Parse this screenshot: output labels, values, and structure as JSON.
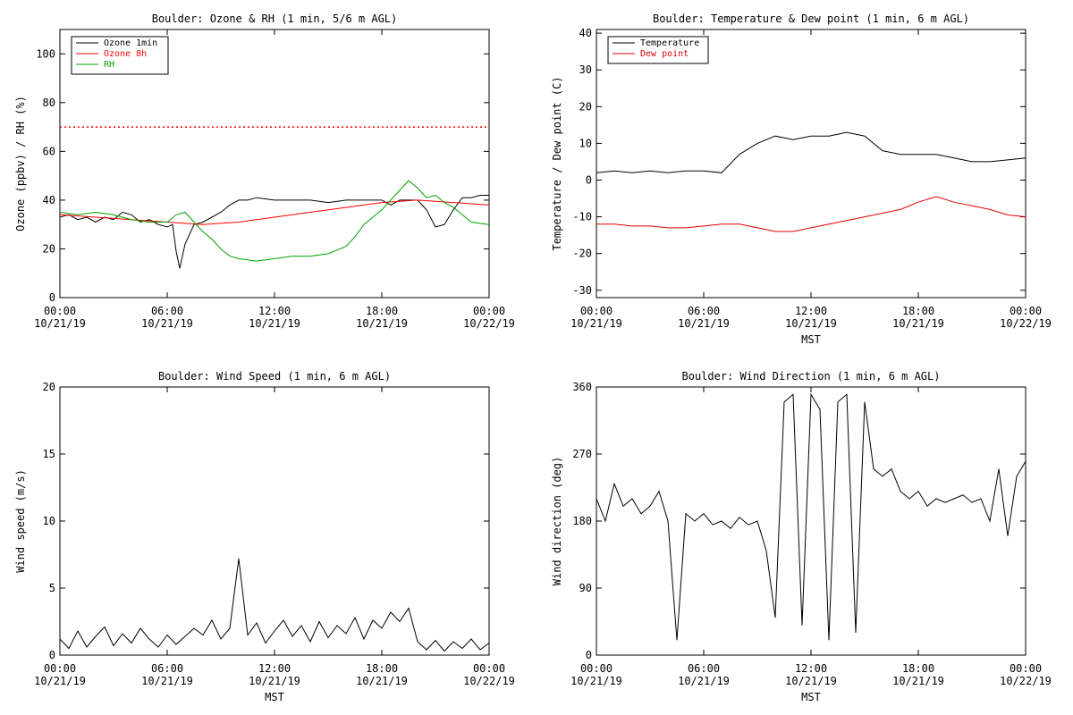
{
  "chart_data": [
    {
      "type": "line",
      "title": "Boulder: Ozone & RH (1 min, 5/6 m AGL)",
      "xlabel": "",
      "ylabel": "Ozone (ppbv) / RH (%)",
      "xlim": [
        0,
        24
      ],
      "ylim": [
        0,
        110
      ],
      "x_tick_values": [
        0,
        6,
        12,
        18,
        24
      ],
      "x_tick_labels": [
        [
          "00:00",
          "10/21/19"
        ],
        [
          "06:00",
          "10/21/19"
        ],
        [
          "12:00",
          "10/21/19"
        ],
        [
          "18:00",
          "10/21/19"
        ],
        [
          "00:00",
          "10/22/19"
        ]
      ],
      "y_ticks": [
        0,
        20,
        40,
        60,
        80,
        100
      ],
      "grid": false,
      "legend_position": "top-left",
      "reference_line": {
        "y": 70,
        "style": "dotted",
        "color": "#ff0000"
      },
      "series": [
        {
          "name": "Ozone 1min",
          "color": "#000000",
          "x": [
            0,
            0.5,
            1,
            1.5,
            2,
            2.5,
            3,
            3.5,
            4,
            4.5,
            5,
            5.5,
            6,
            6.3,
            6.5,
            6.7,
            7,
            7.5,
            8,
            8.5,
            9,
            9.5,
            10,
            10.5,
            11,
            12,
            13,
            14,
            15,
            16,
            17,
            18,
            18.5,
            19,
            19.5,
            20,
            20.5,
            21,
            21.5,
            22,
            22.5,
            23,
            23.5,
            24
          ],
          "y": [
            33,
            34,
            32,
            33,
            31,
            33,
            32,
            35,
            34,
            31,
            32,
            30,
            29,
            30,
            19,
            12,
            22,
            30,
            31,
            33,
            35,
            38,
            40,
            40,
            41,
            40,
            40,
            40,
            39,
            40,
            40,
            40,
            38,
            40,
            40,
            40,
            36,
            29,
            30,
            36,
            41,
            41,
            42,
            42
          ]
        },
        {
          "name": "Ozone 8h",
          "color": "#ff0000",
          "x": [
            0,
            2,
            4,
            6,
            8,
            10,
            12,
            14,
            16,
            18,
            20,
            22,
            24
          ],
          "y": [
            34,
            33,
            32,
            31,
            30,
            31,
            33,
            35,
            37,
            39,
            40,
            39,
            38
          ]
        },
        {
          "name": "RH",
          "color": "#00a000",
          "x": [
            0,
            1,
            2,
            3,
            4,
            5,
            6,
            6.5,
            7,
            7.5,
            8,
            8.5,
            9,
            9.5,
            10,
            11,
            12,
            13,
            14,
            15,
            16,
            16.5,
            17,
            17.5,
            18,
            18.5,
            19,
            19.5,
            20,
            20.5,
            21,
            21.5,
            22,
            22.5,
            23,
            24
          ],
          "y": [
            35,
            34,
            35,
            34,
            32,
            31,
            31,
            34,
            35,
            31,
            27,
            24,
            20,
            17,
            16,
            15,
            16,
            17,
            17,
            18,
            21,
            25,
            30,
            33,
            36,
            40,
            44,
            48,
            45,
            41,
            42,
            39,
            37,
            34,
            31,
            30
          ]
        }
      ]
    },
    {
      "type": "line",
      "title": "Boulder: Temperature & Dew point (1 min, 6 m AGL)",
      "xlabel": "MST",
      "ylabel": "Temperature / Dew point (C)",
      "xlim": [
        0,
        24
      ],
      "ylim": [
        -32,
        41
      ],
      "x_tick_values": [
        0,
        6,
        12,
        18,
        24
      ],
      "x_tick_labels": [
        [
          "00:00",
          "10/21/19"
        ],
        [
          "06:00",
          "10/21/19"
        ],
        [
          "12:00",
          "10/21/19"
        ],
        [
          "18:00",
          "10/21/19"
        ],
        [
          "00:00",
          "10/22/19"
        ]
      ],
      "y_ticks": [
        -30,
        -20,
        -10,
        0,
        10,
        20,
        30,
        40
      ],
      "grid": false,
      "legend_position": "top-left",
      "series": [
        {
          "name": "Temperature",
          "color": "#000000",
          "x": [
            0,
            1,
            2,
            3,
            4,
            5,
            6,
            7,
            8,
            9,
            10,
            11,
            12,
            13,
            14,
            15,
            16,
            17,
            18,
            19,
            20,
            21,
            22,
            23,
            24
          ],
          "y": [
            2,
            2.5,
            2,
            2.5,
            2,
            2.5,
            2.5,
            2,
            7,
            10,
            12,
            11,
            12,
            12,
            13,
            12,
            8,
            7,
            7,
            7,
            6,
            5,
            5,
            5.5,
            6
          ]
        },
        {
          "name": "Dew point",
          "color": "#e00000",
          "x": [
            0,
            1,
            2,
            3,
            4,
            5,
            6,
            7,
            8,
            9,
            10,
            11,
            12,
            13,
            14,
            15,
            16,
            17,
            18,
            19,
            20,
            21,
            22,
            23,
            24
          ],
          "y": [
            -12,
            -12,
            -12.5,
            -12.5,
            -13,
            -13,
            -12.5,
            -12,
            -12,
            -13,
            -14,
            -14,
            -13,
            -12,
            -11,
            -10,
            -9,
            -8,
            -6,
            -4.5,
            -6,
            -7,
            -8,
            -9.5,
            -10
          ]
        }
      ]
    },
    {
      "type": "line",
      "title": "Boulder: Wind Speed (1 min, 6 m AGL)",
      "xlabel": "MST",
      "ylabel": "Wind speed (m/s)",
      "xlim": [
        0,
        24
      ],
      "ylim": [
        0,
        20
      ],
      "x_tick_values": [
        0,
        6,
        12,
        18,
        24
      ],
      "x_tick_labels": [
        [
          "00:00",
          "10/21/19"
        ],
        [
          "06:00",
          "10/21/19"
        ],
        [
          "12:00",
          "10/21/19"
        ],
        [
          "18:00",
          "10/21/19"
        ],
        [
          "00:00",
          "10/22/19"
        ]
      ],
      "y_ticks": [
        0,
        5,
        10,
        15,
        20
      ],
      "grid": false,
      "series": [
        {
          "name": "",
          "color": "#000000",
          "x": [
            0,
            0.5,
            1,
            1.5,
            2,
            2.5,
            3,
            3.5,
            4,
            4.5,
            5,
            5.5,
            6,
            6.5,
            7,
            7.5,
            8,
            8.5,
            9,
            9.5,
            10,
            10.5,
            11,
            11.5,
            12,
            12.5,
            13,
            13.5,
            14,
            14.5,
            15,
            15.5,
            16,
            16.5,
            17,
            17.5,
            18,
            18.5,
            19,
            19.5,
            20,
            20.5,
            21,
            21.5,
            22,
            22.5,
            23,
            23.5,
            24
          ],
          "y": [
            1.2,
            0.5,
            1.8,
            0.6,
            1.4,
            2.1,
            0.7,
            1.6,
            0.9,
            2.0,
            1.2,
            0.6,
            1.5,
            0.8,
            1.4,
            2.0,
            1.5,
            2.6,
            1.2,
            2.0,
            7.2,
            1.5,
            2.4,
            0.9,
            1.8,
            2.6,
            1.4,
            2.2,
            1.0,
            2.5,
            1.3,
            2.2,
            1.6,
            2.8,
            1.2,
            2.6,
            2.0,
            3.2,
            2.5,
            3.5,
            1.0,
            0.4,
            1.1,
            0.3,
            1.0,
            0.5,
            1.2,
            0.4,
            0.9
          ]
        }
      ]
    },
    {
      "type": "line",
      "title": "Boulder: Wind Direction (1 min, 6 m AGL)",
      "xlabel": "MST",
      "ylabel": "Wind direction (deg)",
      "xlim": [
        0,
        24
      ],
      "ylim": [
        0,
        360
      ],
      "x_tick_values": [
        0,
        6,
        12,
        18,
        24
      ],
      "x_tick_labels": [
        [
          "00:00",
          "10/21/19"
        ],
        [
          "06:00",
          "10/21/19"
        ],
        [
          "12:00",
          "10/21/19"
        ],
        [
          "18:00",
          "10/21/19"
        ],
        [
          "00:00",
          "10/22/19"
        ]
      ],
      "y_ticks": [
        0,
        90,
        180,
        270,
        360
      ],
      "grid": false,
      "series": [
        {
          "name": "",
          "color": "#000000",
          "x": [
            0,
            0.5,
            1,
            1.5,
            2,
            2.5,
            3,
            3.5,
            4,
            4.5,
            5,
            5.5,
            6,
            6.5,
            7,
            7.5,
            8,
            8.5,
            9,
            9.5,
            10,
            10.5,
            11,
            11.5,
            12,
            12.5,
            13,
            13.5,
            14,
            14.5,
            15,
            15.5,
            16,
            16.5,
            17,
            17.5,
            18,
            18.5,
            19,
            19.5,
            20,
            20.5,
            21,
            21.5,
            22,
            22.5,
            23,
            23.5,
            24
          ],
          "y": [
            210,
            180,
            230,
            200,
            210,
            190,
            200,
            220,
            180,
            20,
            190,
            180,
            190,
            175,
            180,
            170,
            185,
            175,
            180,
            140,
            50,
            340,
            350,
            40,
            350,
            330,
            20,
            340,
            350,
            30,
            340,
            250,
            240,
            250,
            220,
            210,
            220,
            200,
            210,
            205,
            210,
            215,
            205,
            210,
            180,
            250,
            160,
            240,
            260
          ]
        }
      ]
    }
  ]
}
